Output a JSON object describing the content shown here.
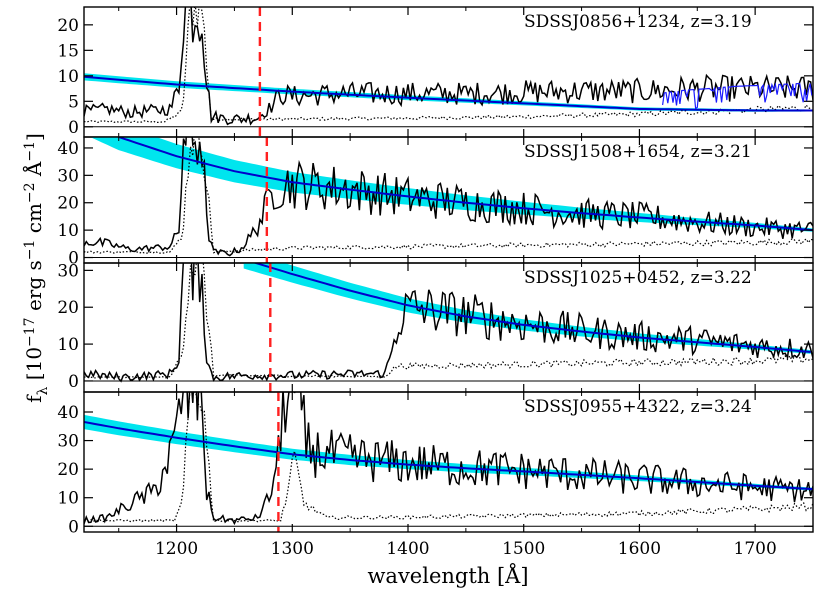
{
  "chart_data": {
    "type": "line",
    "xlabel": "wavelength [Å]",
    "ylabel": "f_λ [10^-17 erg s^-1 cm^-2 Å^-1]",
    "xlim": [
      1120,
      1750
    ],
    "x_ticks": [
      1200,
      1300,
      1400,
      1500,
      1600,
      1700
    ],
    "grid": false,
    "colors": {
      "spectrum": "#000000",
      "noise": "#000000",
      "model": "#0000cc",
      "model_band": "#00e5ee",
      "marker": "#ff2020",
      "zero": "#000000"
    },
    "panels": [
      {
        "label": "SDSSJ0856+1234, z=3.19",
        "ylim": [
          -2,
          23.5
        ],
        "y_ticks": [
          0,
          5,
          10,
          15,
          20
        ],
        "marker_wavelength": 1272,
        "model": {
          "x": [
            1120,
            1200,
            1300,
            1400,
            1500,
            1600,
            1700,
            1750
          ],
          "y": [
            9.8,
            8.3,
            6.9,
            5.7,
            4.6,
            3.5,
            3.2,
            3.2
          ]
        },
        "band_halfwidth": [
          0.7,
          0.2
        ],
        "spectrum": {
          "x": [
            1120,
            1140,
            1160,
            1180,
            1195,
            1202,
            1206,
            1210,
            1216,
            1222,
            1226,
            1230,
            1250,
            1270,
            1282,
            1290,
            1300,
            1340,
            1400,
            1450,
            1500,
            1550,
            1600,
            1650,
            1700,
            1750
          ],
          "y": [
            3,
            3.5,
            2.8,
            3.2,
            3.5,
            8,
            23.5,
            23.5,
            23.5,
            23.5,
            9,
            2,
            1.5,
            1.8,
            4,
            6.5,
            6,
            6.5,
            6.5,
            6.5,
            6.8,
            7,
            7,
            7.5,
            7.5,
            7.5
          ]
        },
        "noise": {
          "x": [
            1120,
            1190,
            1205,
            1212,
            1222,
            1230,
            1300,
            1400,
            1500,
            1600,
            1700,
            1750
          ],
          "y": [
            1,
            1,
            3,
            23.5,
            23.5,
            1.5,
            1.5,
            1.7,
            2,
            2.5,
            3.3,
            3.8
          ]
        },
        "extra_model": {
          "x": [
            1620,
            1640,
            1660,
            1680,
            1700,
            1720,
            1740,
            1750
          ],
          "y": [
            6.6,
            7.2,
            7.5,
            7.9,
            8.1,
            8.3,
            8.5,
            8.5
          ],
          "amp": 4
        }
      },
      {
        "label": "SDSSJ1508+1654, z=3.21",
        "ylim": [
          -2,
          44
        ],
        "y_ticks": [
          0,
          10,
          20,
          30,
          40
        ],
        "marker_wavelength": 1278,
        "model": {
          "x": [
            1120,
            1150,
            1200,
            1250,
            1300,
            1350,
            1400,
            1450,
            1500,
            1550,
            1600,
            1650,
            1700,
            1750
          ],
          "y": [
            50,
            44,
            37,
            31.5,
            27.5,
            24.8,
            22.3,
            20,
            18,
            16.2,
            14.6,
            13.1,
            11.7,
            10
          ]
        },
        "band_halfwidth": [
          5,
          0.6
        ],
        "spectrum": {
          "x": [
            1120,
            1140,
            1160,
            1180,
            1195,
            1202,
            1206,
            1210,
            1216,
            1222,
            1226,
            1232,
            1245,
            1255,
            1265,
            1275,
            1285,
            1300,
            1350,
            1400,
            1450,
            1500,
            1550,
            1600,
            1650,
            1700,
            1750
          ],
          "y": [
            6,
            5,
            3,
            3.5,
            4,
            10,
            44,
            44,
            44,
            44,
            12,
            2,
            1.5,
            3,
            8,
            16,
            26,
            27,
            25,
            22,
            20,
            18,
            16,
            15,
            13,
            11,
            10
          ]
        },
        "noise": {
          "x": [
            1120,
            1195,
            1205,
            1212,
            1222,
            1232,
            1300,
            1400,
            1500,
            1600,
            1700,
            1750
          ],
          "y": [
            2,
            2,
            8,
            44,
            44,
            2,
            3.5,
            4,
            4.5,
            5,
            5.5,
            6
          ]
        }
      },
      {
        "label": "SDSSJ1025+0452, z=3.22",
        "ylim": [
          -3,
          32
        ],
        "y_ticks": [
          0,
          10,
          20,
          30
        ],
        "marker_wavelength": 1281,
        "model": {
          "x": [
            1258,
            1300,
            1350,
            1400,
            1450,
            1500,
            1550,
            1600,
            1650,
            1700,
            1750
          ],
          "y": [
            33,
            29,
            24.5,
            20.5,
            17.5,
            15.2,
            13.4,
            11.8,
            10.5,
            9.2,
            7.8
          ]
        },
        "band_halfwidth": [
          2.5,
          0.5
        ],
        "spectrum": {
          "x": [
            1120,
            1150,
            1180,
            1195,
            1202,
            1206,
            1210,
            1216,
            1222,
            1226,
            1232,
            1260,
            1300,
            1340,
            1380,
            1386,
            1392,
            1400,
            1450,
            1500,
            1550,
            1600,
            1650,
            1700,
            1750
          ],
          "y": [
            2,
            1,
            1.5,
            2,
            6,
            32,
            32,
            32,
            32,
            5,
            1,
            1.5,
            1.5,
            1.8,
            2,
            8,
            16,
            20,
            18,
            15.5,
            13.5,
            12,
            11,
            9.5,
            8.5
          ]
        },
        "noise": {
          "x": [
            1120,
            1195,
            1205,
            1212,
            1222,
            1232,
            1380,
            1390,
            1500,
            1600,
            1700,
            1750
          ],
          "y": [
            1,
            1,
            8,
            32,
            32,
            1.5,
            1.2,
            4,
            4.5,
            5,
            5.5,
            6
          ]
        }
      },
      {
        "label": "SDSSJ0955+4322, z=3.24",
        "ylim": [
          -2,
          47
        ],
        "y_ticks": [
          0,
          10,
          20,
          30,
          40
        ],
        "marker_wavelength": 1288,
        "model": {
          "x": [
            1120,
            1150,
            1200,
            1250,
            1300,
            1350,
            1400,
            1450,
            1500,
            1550,
            1600,
            1650,
            1700,
            1750
          ],
          "y": [
            36.5,
            34.3,
            31,
            28,
            25.2,
            23.2,
            21.6,
            20.3,
            19.2,
            18,
            16.8,
            15.5,
            14.2,
            13
          ]
        },
        "band_halfwidth": [
          2.5,
          0.5
        ],
        "spectrum": {
          "x": [
            1120,
            1140,
            1160,
            1180,
            1195,
            1200,
            1205,
            1210,
            1216,
            1222,
            1226,
            1232,
            1250,
            1270,
            1280,
            1288,
            1294,
            1300,
            1306,
            1312,
            1320,
            1350,
            1400,
            1450,
            1500,
            1550,
            1600,
            1650,
            1700,
            1750
          ],
          "y": [
            2,
            3,
            8,
            12,
            25,
            32,
            47,
            47,
            47,
            47,
            12,
            3,
            2,
            3,
            10,
            24,
            47,
            47,
            47,
            28,
            26,
            24,
            22,
            20.5,
            19.5,
            18,
            16.5,
            15,
            13.5,
            12.5
          ]
        },
        "noise": {
          "x": [
            1120,
            1198,
            1205,
            1212,
            1222,
            1232,
            1290,
            1296,
            1302,
            1310,
            1330,
            1400,
            1500,
            1600,
            1700,
            1750
          ],
          "y": [
            2,
            2,
            8,
            47,
            47,
            2,
            2,
            12,
            24,
            8,
            3,
            3.2,
            3.8,
            4.5,
            6,
            7
          ]
        }
      }
    ]
  }
}
